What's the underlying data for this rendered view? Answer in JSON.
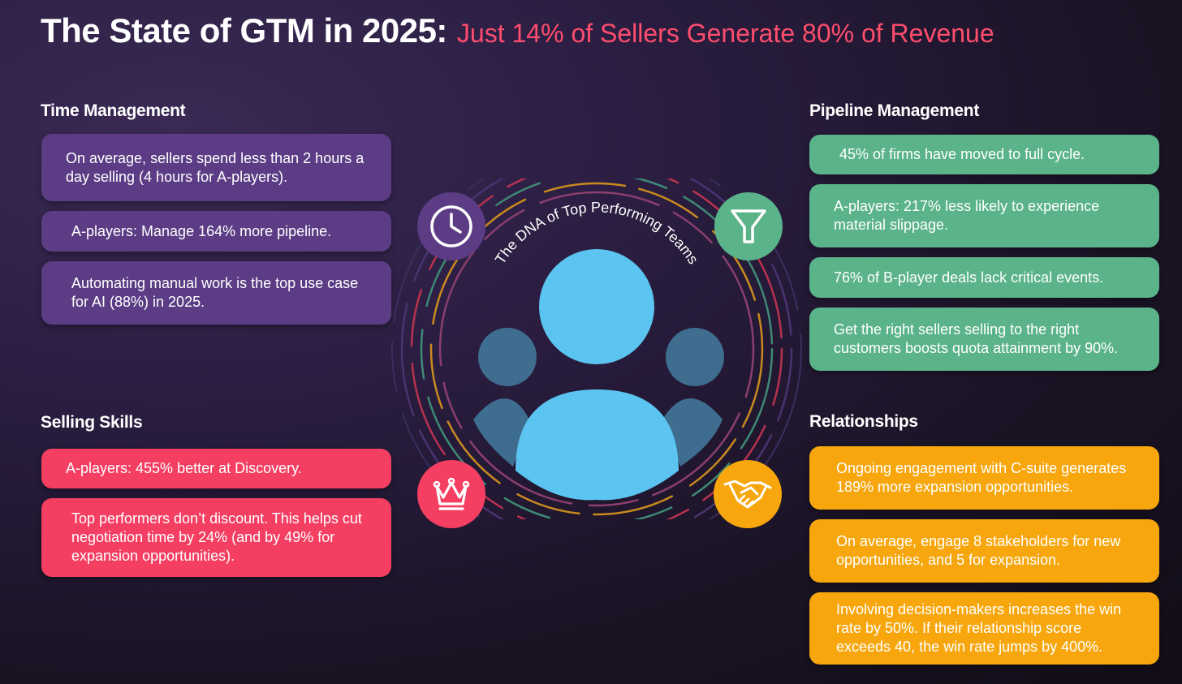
{
  "title": {
    "main": "The State of GTM in 2025:",
    "sub": "Just 14% of Sellers Generate 80% of Revenue"
  },
  "colors": {
    "accent_red": "#f43f62",
    "purple": "#5c3d85",
    "green": "#5bb38a",
    "orange": "#f7a70d",
    "person_blue": "#5bc4f0",
    "person_dim": "#3f6d8f"
  },
  "center": {
    "arc_label": "The DNA of Top Performing Teams",
    "icons": [
      "clock-icon",
      "funnel-icon",
      "crown-icon",
      "handshake-icon"
    ]
  },
  "sections": {
    "time_management": {
      "heading": "Time Management",
      "items": [
        "On average, sellers spend less than 2 hours a day selling (4 hours for A-players).",
        "A-players: Manage 164% more pipeline.",
        "Automating manual work is the top use case for AI (88%) in 2025."
      ]
    },
    "selling_skills": {
      "heading": "Selling Skills",
      "items": [
        "A-players: 455% better at Discovery.",
        "Top performers don’t discount. This helps cut negotiation time by 24% (and by 49% for expansion opportunities)."
      ]
    },
    "pipeline_management": {
      "heading": "Pipeline Management",
      "items": [
        "45% of firms have moved to full cycle.",
        "A-players: 217% less likely to experience material slippage.",
        "76% of B-player deals lack critical events.",
        "Get the right sellers selling to the right customers boosts quota attainment by 90%."
      ]
    },
    "relationships": {
      "heading": "Relationships",
      "items": [
        "Ongoing engagement with C-suite generates 189% more expansion opportunities.",
        "On average, engage 8 stakeholders for new opportunities, and 5 for expansion.",
        "Involving decision-makers increases the win rate by 50%. If their relationship score exceeds 40, the win rate jumps by 400%."
      ]
    }
  }
}
